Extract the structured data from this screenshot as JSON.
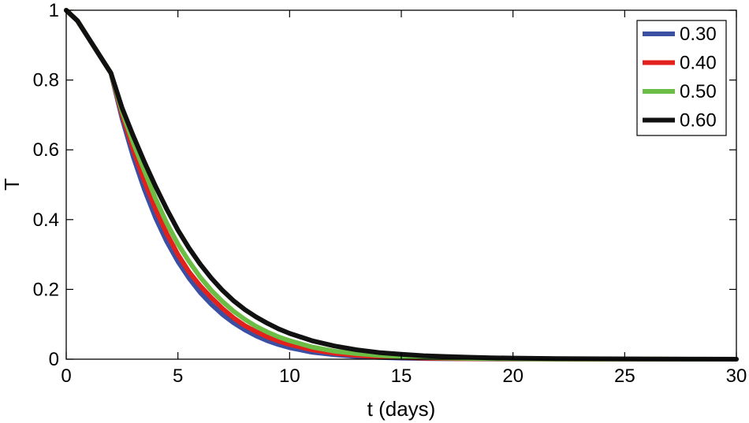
{
  "chart_data": {
    "type": "line",
    "title": "",
    "xlabel": "t (days)",
    "ylabel": "T",
    "xlim": [
      0,
      30
    ],
    "ylim": [
      0,
      1
    ],
    "xticks": [
      0,
      5,
      10,
      15,
      20,
      25,
      30
    ],
    "xtick_labels": [
      "0",
      "5",
      "10",
      "15",
      "20",
      "25",
      "30"
    ],
    "yticks": [
      0,
      0.2,
      0.4,
      0.6,
      0.8,
      1
    ],
    "ytick_labels": [
      "0",
      "0.2",
      "0.4",
      "0.6",
      "0.8",
      "1"
    ],
    "grid": false,
    "legend_position": "top-right",
    "x": [
      0,
      0.5,
      1,
      1.5,
      2,
      2.5,
      3,
      3.5,
      4,
      4.5,
      5,
      5.5,
      6,
      6.5,
      7,
      7.5,
      8,
      8.5,
      9,
      9.5,
      10,
      11,
      12,
      13,
      14,
      15,
      16,
      17,
      18,
      19,
      20,
      22,
      24,
      26,
      28,
      30
    ],
    "series": [
      {
        "name": "0.30",
        "color": "#3b4fa3",
        "values": [
          1.0,
          0.97,
          0.92,
          0.87,
          0.82,
          0.69,
          0.58,
          0.486,
          0.405,
          0.337,
          0.28,
          0.232,
          0.191,
          0.157,
          0.128,
          0.104,
          0.084,
          0.067,
          0.053,
          0.042,
          0.033,
          0.02,
          0.013,
          0.008,
          0.005,
          0.003,
          0.002,
          0.0015,
          0.001,
          0.0007,
          0.0005,
          0.0003,
          0.0002,
          0.0001,
          0.0001,
          0.0
        ]
      },
      {
        "name": "0.40",
        "color": "#e3211c",
        "values": [
          1.0,
          0.97,
          0.92,
          0.87,
          0.82,
          0.7,
          0.6,
          0.51,
          0.43,
          0.36,
          0.3,
          0.25,
          0.21,
          0.176,
          0.145,
          0.118,
          0.096,
          0.079,
          0.064,
          0.052,
          0.042,
          0.027,
          0.017,
          0.011,
          0.007,
          0.005,
          0.003,
          0.002,
          0.0015,
          0.001,
          0.0008,
          0.0005,
          0.0003,
          0.0002,
          0.0001,
          0.0
        ]
      },
      {
        "name": "0.50",
        "color": "#6cbd45",
        "values": [
          1.0,
          0.97,
          0.92,
          0.87,
          0.82,
          0.71,
          0.62,
          0.54,
          0.46,
          0.39,
          0.33,
          0.28,
          0.235,
          0.197,
          0.165,
          0.137,
          0.114,
          0.094,
          0.078,
          0.064,
          0.053,
          0.035,
          0.023,
          0.016,
          0.011,
          0.0075,
          0.005,
          0.0035,
          0.0025,
          0.0018,
          0.0013,
          0.0007,
          0.0004,
          0.0002,
          0.0001,
          0.0
        ]
      },
      {
        "name": "0.60",
        "color": "#111111",
        "values": [
          1.0,
          0.97,
          0.92,
          0.87,
          0.82,
          0.72,
          0.64,
          0.565,
          0.495,
          0.43,
          0.37,
          0.318,
          0.272,
          0.232,
          0.197,
          0.167,
          0.142,
          0.121,
          0.103,
          0.087,
          0.074,
          0.053,
          0.038,
          0.027,
          0.019,
          0.014,
          0.01,
          0.0075,
          0.0055,
          0.004,
          0.003,
          0.0017,
          0.001,
          0.0006,
          0.0003,
          0.0001
        ]
      }
    ]
  }
}
